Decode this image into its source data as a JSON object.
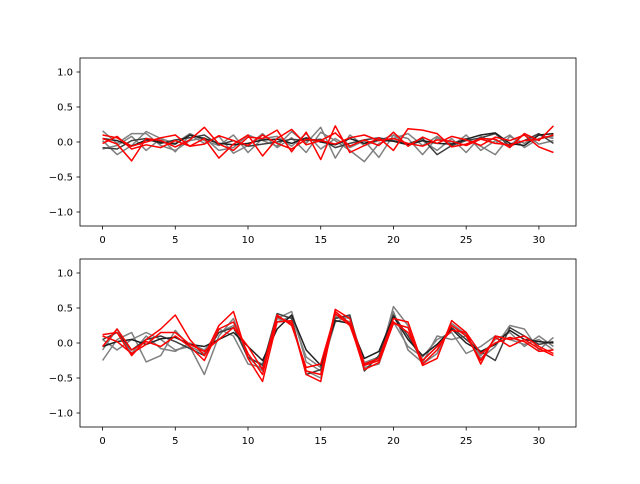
{
  "chart_data": [
    {
      "type": "line",
      "title": "",
      "xlabel": "",
      "ylabel": "",
      "xlim": [
        -1.55,
        32.55
      ],
      "ylim": [
        -1.2,
        1.2
      ],
      "xticks": [
        0,
        5,
        10,
        15,
        20,
        25,
        30
      ],
      "yticks": [
        -1.0,
        -0.5,
        0.0,
        0.5,
        1.0
      ],
      "xtick_labels": [
        "0",
        "5",
        "10",
        "15",
        "20",
        "25",
        "30"
      ],
      "ytick_labels": [
        "−1.0",
        "−0.5",
        "0.0",
        "0.5",
        "1.0"
      ],
      "grid": false,
      "x": [
        0,
        1,
        2,
        3,
        4,
        5,
        6,
        7,
        8,
        9,
        10,
        11,
        12,
        13,
        14,
        15,
        16,
        17,
        18,
        19,
        20,
        21,
        22,
        23,
        24,
        25,
        26,
        27,
        28,
        29,
        30,
        31
      ],
      "series": [
        {
          "color": "#808080",
          "values": [
            0.16,
            -0.02,
            0.12,
            0.12,
            -0.05,
            -0.12,
            0.02,
            0.06,
            -0.12,
            -0.08,
            0.1,
            0.02,
            -0.06,
            0.15,
            -0.02,
            0.21,
            -0.23,
            0.1,
            -0.05,
            0.02,
            0.1,
            0.05,
            -0.18,
            0.06,
            -0.02,
            0.05,
            -0.06,
            -0.18,
            0.08,
            -0.02,
            0.1,
            0.05
          ]
        },
        {
          "color": "#808080",
          "values": [
            0.02,
            -0.18,
            -0.05,
            0.15,
            0.05,
            -0.14,
            0.1,
            -0.02,
            0.08,
            -0.16,
            -0.05,
            0.12,
            -0.08,
            0.06,
            -0.15,
            0.14,
            0.02,
            -0.12,
            -0.28,
            -0.02,
            0.05,
            0.12,
            -0.05,
            0.08,
            -0.06,
            0.1,
            -0.12,
            0.02,
            -0.05,
            0.12,
            -0.03,
            0.02
          ]
        },
        {
          "color": "#808080",
          "values": [
            -0.1,
            -0.05,
            0.08,
            -0.12,
            0.05,
            -0.02,
            0.12,
            0.02,
            -0.05,
            0.1,
            -0.15,
            0.05,
            0.08,
            -0.06,
            0.12,
            -0.1,
            0.05,
            -0.08,
            0.02,
            -0.22,
            0.1,
            -0.05,
            0.02,
            -0.12,
            0.05,
            -0.15,
            0.08,
            -0.02,
            0.1,
            -0.08,
            0.05,
            0.08
          ]
        },
        {
          "color": "#404040",
          "values": [
            -0.08,
            -0.1,
            0.02,
            0.05,
            -0.02,
            0.03,
            0.06,
            0.1,
            -0.04,
            0.02,
            -0.06,
            -0.03,
            0.0,
            0.04,
            0.02,
            0.04,
            -0.08,
            -0.02,
            0.03,
            0.06,
            0.02,
            -0.03,
            0.05,
            -0.18,
            -0.05,
            0.02,
            0.06,
            0.12,
            -0.06,
            0.02,
            0.12,
            -0.02
          ]
        },
        {
          "color": "#202020",
          "values": [
            0.05,
            0.02,
            -0.06,
            0.03,
            0.0,
            -0.03,
            0.1,
            0.05,
            -0.02,
            -0.04,
            -0.02,
            0.03,
            0.04,
            -0.02,
            0.06,
            0.0,
            -0.04,
            0.05,
            -0.02,
            0.03,
            0.01,
            -0.04,
            0.02,
            -0.02,
            -0.03,
            0.04,
            0.1,
            0.13,
            -0.02,
            -0.05,
            0.1,
            0.12
          ]
        },
        {
          "color": "#ff0000",
          "values": [
            0.05,
            -0.03,
            -0.27,
            0.05,
            0.02,
            -0.07,
            0.03,
            0.21,
            -0.03,
            -0.12,
            0.07,
            0.05,
            0.17,
            -0.14,
            0.14,
            -0.25,
            0.23,
            -0.15,
            -0.05,
            0.06,
            -0.12,
            0.19,
            0.17,
            0.12,
            -0.07,
            -0.03,
            0.05,
            0.04,
            -0.08,
            0.12,
            0.02,
            0.23
          ]
        },
        {
          "color": "#ff0000",
          "values": [
            0.1,
            0.06,
            -0.06,
            0.0,
            0.06,
            0.1,
            -0.06,
            0.05,
            -0.23,
            -0.03,
            0.1,
            -0.2,
            0.05,
            0.18,
            -0.04,
            0.02,
            0.13,
            -0.06,
            0.03,
            -0.05,
            0.14,
            -0.06,
            0.07,
            -0.02,
            0.08,
            0.03,
            -0.05,
            0.07,
            0.02,
            0.1,
            -0.07,
            -0.15
          ]
        },
        {
          "color": "#ff0000",
          "values": [
            -0.02,
            0.08,
            -0.1,
            -0.04,
            -0.08,
            0.02,
            -0.06,
            -0.03,
            0.09,
            0.02,
            -0.05,
            0.1,
            -0.02,
            -0.1,
            0.04,
            0.02,
            -0.03,
            0.06,
            0.1,
            0.02,
            0.05,
            -0.02,
            -0.06,
            0.03,
            0.01,
            -0.05,
            0.04,
            -0.02,
            -0.04,
            0.02,
            0.04,
            0.1
          ]
        }
      ]
    },
    {
      "type": "line",
      "title": "",
      "xlabel": "",
      "ylabel": "",
      "xlim": [
        -1.55,
        32.55
      ],
      "ylim": [
        -1.2,
        1.2
      ],
      "xticks": [
        0,
        5,
        10,
        15,
        20,
        25,
        30
      ],
      "yticks": [
        -1.0,
        -0.5,
        0.0,
        0.5,
        1.0
      ],
      "xtick_labels": [
        "0",
        "5",
        "10",
        "15",
        "20",
        "25",
        "30"
      ],
      "ytick_labels": [
        "−1.0",
        "−0.5",
        "0.0",
        "0.5",
        "1.0"
      ],
      "grid": false,
      "x": [
        0,
        1,
        2,
        3,
        4,
        5,
        6,
        7,
        8,
        9,
        10,
        11,
        12,
        13,
        14,
        15,
        16,
        17,
        18,
        19,
        20,
        21,
        22,
        23,
        24,
        25,
        26,
        27,
        28,
        29,
        30,
        31
      ],
      "series": [
        {
          "color": "#808080",
          "values": [
            -0.25,
            0.05,
            0.15,
            -0.27,
            -0.18,
            0.18,
            -0.05,
            -0.45,
            0.1,
            0.35,
            -0.2,
            -0.4,
            0.35,
            0.45,
            -0.27,
            -0.4,
            0.3,
            0.38,
            -0.3,
            -0.25,
            0.52,
            0.25,
            -0.3,
            -0.15,
            0.28,
            0.12,
            -0.22,
            -0.05,
            0.25,
            0.2,
            -0.1,
            0.08
          ]
        },
        {
          "color": "#808080",
          "values": [
            0.05,
            -0.1,
            0.05,
            0.15,
            0.05,
            -0.1,
            -0.05,
            -0.15,
            0.2,
            0.1,
            -0.3,
            -0.35,
            0.35,
            0.3,
            -0.4,
            -0.5,
            0.4,
            0.35,
            -0.35,
            -0.3,
            0.3,
            -0.05,
            -0.2,
            0.05,
            0.15,
            -0.15,
            -0.05,
            0.1,
            0.05,
            -0.02,
            0.05,
            -0.1
          ]
        },
        {
          "color": "#808080",
          "values": [
            -0.1,
            0.2,
            -0.15,
            0.1,
            -0.08,
            -0.12,
            0.0,
            -0.1,
            0.15,
            0.25,
            -0.22,
            -0.3,
            0.3,
            0.38,
            -0.2,
            -0.35,
            0.38,
            0.3,
            -0.28,
            -0.2,
            0.45,
            -0.1,
            -0.28,
            0.1,
            0.05,
            0.1,
            -0.18,
            0.05,
            0.15,
            -0.05,
            0.1,
            -0.05
          ]
        },
        {
          "color": "#404040",
          "values": [
            0.05,
            0.15,
            -0.1,
            0.05,
            0.1,
            0.02,
            -0.08,
            -0.18,
            0.15,
            0.22,
            -0.2,
            -0.32,
            0.42,
            0.35,
            -0.45,
            -0.38,
            0.35,
            0.4,
            -0.4,
            -0.18,
            0.4,
            0.1,
            -0.25,
            -0.05,
            0.22,
            0.05,
            -0.12,
            -0.25,
            0.22,
            0.1,
            -0.02,
            0.02
          ]
        },
        {
          "color": "#202020",
          "values": [
            -0.05,
            0.02,
            0.05,
            -0.02,
            0.06,
            0.08,
            -0.02,
            -0.05,
            0.05,
            0.15,
            -0.05,
            -0.25,
            0.2,
            0.4,
            -0.1,
            -0.32,
            0.32,
            0.28,
            -0.22,
            -0.12,
            0.38,
            0.05,
            -0.18,
            -0.02,
            0.2,
            0.0,
            -0.12,
            -0.02,
            0.18,
            0.05,
            0.02,
            0.0
          ]
        },
        {
          "color": "#ff0000",
          "values": [
            0.12,
            0.15,
            -0.18,
            0.05,
            0.2,
            0.4,
            0.05,
            -0.18,
            0.25,
            0.45,
            -0.22,
            -0.55,
            0.3,
            0.32,
            -0.45,
            -0.55,
            0.45,
            0.28,
            -0.38,
            -0.28,
            0.28,
            0.22,
            -0.32,
            -0.22,
            0.32,
            0.15,
            -0.3,
            0.1,
            0.05,
            0.1,
            -0.05,
            -0.15
          ]
        },
        {
          "color": "#ff0000",
          "values": [
            -0.05,
            0.2,
            -0.1,
            0.02,
            -0.05,
            0.1,
            -0.05,
            -0.25,
            0.2,
            0.3,
            -0.15,
            -0.45,
            0.38,
            0.28,
            -0.4,
            -0.45,
            0.48,
            0.35,
            -0.3,
            -0.22,
            0.35,
            0.3,
            -0.3,
            -0.1,
            0.25,
            0.1,
            -0.25,
            0.08,
            -0.05,
            0.05,
            -0.08,
            -0.18
          ]
        },
        {
          "color": "#ff0000",
          "values": [
            0.1,
            0.02,
            -0.15,
            -0.02,
            0.15,
            0.15,
            -0.02,
            -0.12,
            0.05,
            0.22,
            -0.05,
            -0.38,
            0.4,
            0.25,
            -0.35,
            -0.3,
            0.42,
            0.25,
            -0.32,
            -0.25,
            0.3,
            0.15,
            -0.25,
            -0.05,
            0.18,
            0.15,
            -0.15,
            0.0,
            0.08,
            0.02,
            -0.12,
            -0.1
          ]
        }
      ]
    }
  ]
}
